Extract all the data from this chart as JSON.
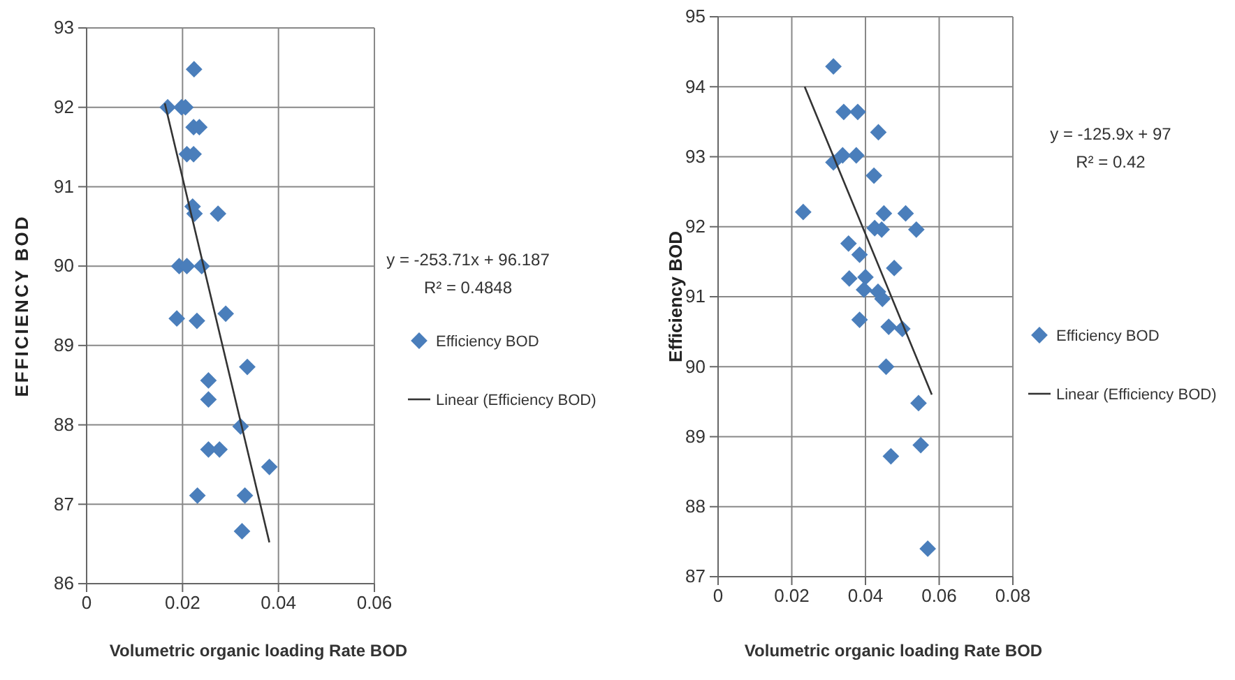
{
  "chart_data": [
    {
      "type": "scatter",
      "xlabel": "Volumetric organic loading Rate BOD",
      "ylabel": "EFFICIENCY BOD",
      "xlim": [
        0,
        0.06
      ],
      "xticks": [
        0,
        0.02,
        0.04,
        0.06
      ],
      "ylim": [
        86,
        93
      ],
      "yticks": [
        86,
        87,
        88,
        89,
        90,
        91,
        92,
        93
      ],
      "grid": true,
      "legend": "right",
      "annotations": [
        "y = -253.71x + 96.187",
        "R² = 0.4848"
      ],
      "series": [
        {
          "name": "Efficiency BOD",
          "marker": "diamond",
          "color": "#4a7ebb",
          "x": [
            0.0224,
            0.0169,
            0.0198,
            0.0206,
            0.0223,
            0.0235,
            0.0209,
            0.0223,
            0.0221,
            0.0225,
            0.0274,
            0.0193,
            0.0209,
            0.024,
            0.0188,
            0.023,
            0.029,
            0.0335,
            0.0254,
            0.0254,
            0.0321,
            0.0254,
            0.0277,
            0.0381,
            0.0231,
            0.033,
            0.0324
          ],
          "values": [
            92.48,
            92.0,
            92.0,
            92.0,
            91.75,
            91.75,
            91.41,
            91.41,
            90.75,
            90.66,
            90.66,
            90.0,
            90.0,
            90.0,
            89.34,
            89.31,
            89.4,
            88.73,
            88.56,
            88.32,
            87.98,
            87.69,
            87.69,
            87.47,
            87.11,
            87.11,
            86.66
          ]
        },
        {
          "name": "Linear (Efficiency BOD)",
          "type": "line",
          "marker": "none",
          "color": "#333333",
          "x": [
            0.0163,
            0.0381
          ],
          "values": [
            92.05,
            86.52
          ]
        }
      ]
    },
    {
      "type": "scatter",
      "xlabel": "Volumetric organic loading Rate BOD",
      "ylabel": "Efficiency BOD",
      "xlim": [
        0,
        0.08
      ],
      "xticks": [
        0,
        0.02,
        0.04,
        0.06,
        0.08
      ],
      "ylim": [
        87,
        95
      ],
      "yticks": [
        87,
        88,
        89,
        90,
        91,
        92,
        93,
        94,
        95
      ],
      "grid": true,
      "legend": "right",
      "annotations": [
        "y = -125.9x + 97",
        "R² = 0.42"
      ],
      "series": [
        {
          "name": "Efficiency BOD",
          "marker": "diamond",
          "color": "#4a7ebb",
          "x": [
            0.0313,
            0.0341,
            0.0379,
            0.0435,
            0.0313,
            0.0338,
            0.0375,
            0.0423,
            0.0231,
            0.045,
            0.0509,
            0.0425,
            0.0444,
            0.0538,
            0.0354,
            0.0384,
            0.0478,
            0.0356,
            0.04,
            0.0396,
            0.0434,
            0.0446,
            0.0384,
            0.0463,
            0.05,
            0.0456,
            0.0544,
            0.055,
            0.0469,
            0.0569
          ],
          "values": [
            94.29,
            93.64,
            93.64,
            93.35,
            92.92,
            93.02,
            93.02,
            92.73,
            92.21,
            92.19,
            92.19,
            91.98,
            91.96,
            91.96,
            91.76,
            91.6,
            91.41,
            91.26,
            91.28,
            91.1,
            91.07,
            90.97,
            90.67,
            90.57,
            90.54,
            90.0,
            89.48,
            88.88,
            88.72,
            87.4
          ]
        },
        {
          "name": "Linear (Efficiency BOD)",
          "type": "line",
          "marker": "none",
          "color": "#333333",
          "x": [
            0.0235,
            0.058
          ],
          "values": [
            94.0,
            89.6
          ]
        }
      ]
    }
  ]
}
